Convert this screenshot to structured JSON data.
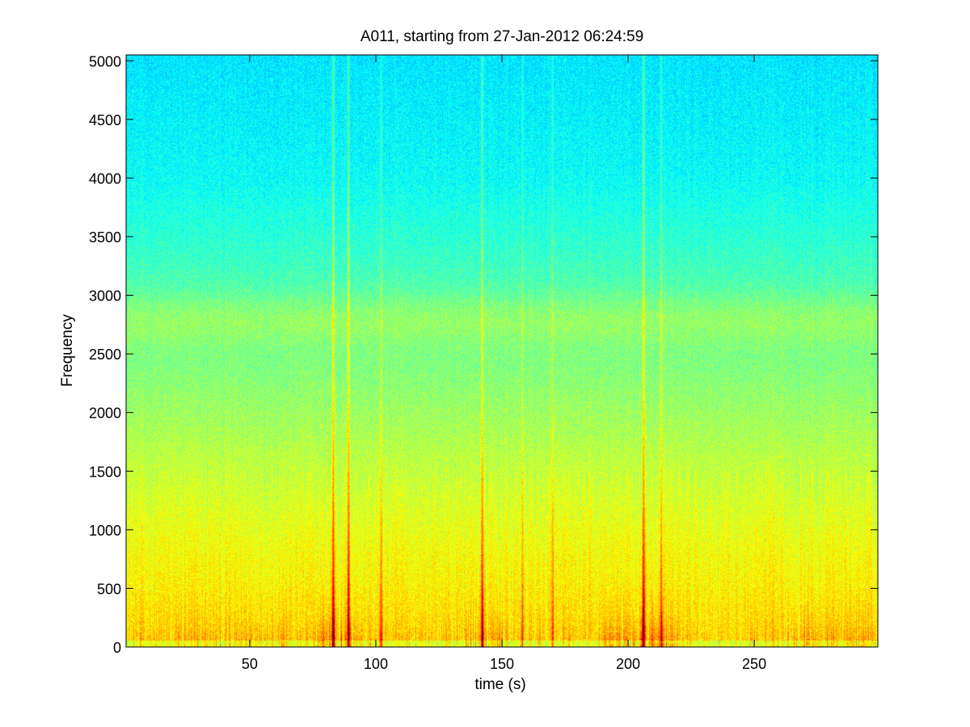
{
  "chart_data": {
    "type": "heatmap",
    "title": "A011, starting from 27-Jan-2012 06:24:59",
    "xlabel": "time (s)",
    "ylabel": "Frequency",
    "xlim": [
      1,
      299
    ],
    "ylim": [
      0,
      5050
    ],
    "xticks": [
      50,
      100,
      150,
      200,
      250
    ],
    "yticks": [
      0,
      500,
      1000,
      1500,
      2000,
      2500,
      3000,
      3500,
      4000,
      4500,
      5000
    ],
    "xtick_labels": [
      "50",
      "100",
      "150",
      "200",
      "250"
    ],
    "ytick_labels": [
      "0",
      "500",
      "1000",
      "1500",
      "2000",
      "2500",
      "3000",
      "3500",
      "4000",
      "4500",
      "5000"
    ],
    "colormap": "jet",
    "grid": false,
    "broadband_events": [
      {
        "t": 83,
        "strength": 1.0
      },
      {
        "t": 89,
        "strength": 0.9
      },
      {
        "t": 102,
        "strength": 0.45
      },
      {
        "t": 142,
        "strength": 0.8
      },
      {
        "t": 158,
        "strength": 0.35
      },
      {
        "t": 170,
        "strength": 0.4
      },
      {
        "t": 206,
        "strength": 1.0
      },
      {
        "t": 213,
        "strength": 0.6
      }
    ],
    "low_frequency_clusters": [
      {
        "t_start": 20,
        "t_end": 65,
        "strength": 0.55
      },
      {
        "t_start": 74,
        "t_end": 95,
        "strength": 0.95
      },
      {
        "t_start": 135,
        "t_end": 150,
        "strength": 0.8
      },
      {
        "t_start": 190,
        "t_end": 220,
        "strength": 0.95
      },
      {
        "t_start": 262,
        "t_end": 298,
        "strength": 0.7
      }
    ],
    "band_peak_frequency": 2800
  }
}
